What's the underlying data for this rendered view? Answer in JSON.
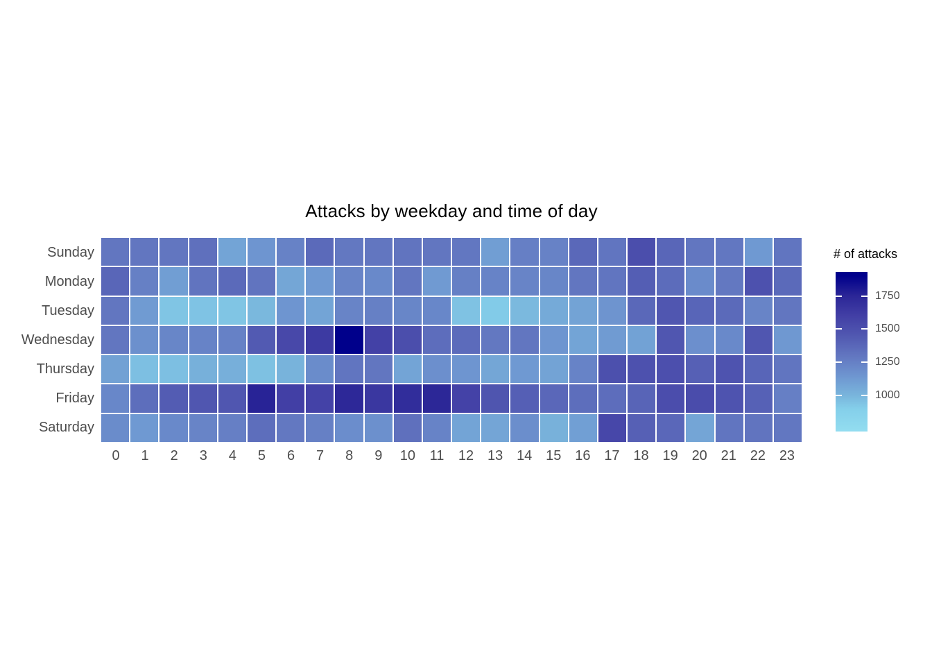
{
  "chart_data": {
    "type": "heatmap",
    "title": "Attacks by weekday and time of day",
    "xlabel": "",
    "ylabel": "",
    "x_categories": [
      "0",
      "1",
      "2",
      "3",
      "4",
      "5",
      "6",
      "7",
      "8",
      "9",
      "10",
      "11",
      "12",
      "13",
      "14",
      "15",
      "16",
      "17",
      "18",
      "19",
      "20",
      "21",
      "22",
      "23"
    ],
    "y_categories": [
      "Sunday",
      "Monday",
      "Tuesday",
      "Wednesday",
      "Thursday",
      "Friday",
      "Saturday"
    ],
    "series": [
      {
        "name": "Sunday",
        "values": [
          1300,
          1300,
          1300,
          1330,
          1080,
          1150,
          1240,
          1360,
          1290,
          1300,
          1310,
          1300,
          1295,
          1110,
          1255,
          1240,
          1370,
          1305,
          1510,
          1380,
          1300,
          1295,
          1130,
          1305
        ]
      },
      {
        "name": "Monday",
        "values": [
          1380,
          1250,
          1110,
          1310,
          1360,
          1310,
          1070,
          1130,
          1230,
          1210,
          1300,
          1125,
          1250,
          1235,
          1230,
          1225,
          1300,
          1305,
          1420,
          1350,
          1200,
          1290,
          1490,
          1360
        ]
      },
      {
        "name": "Tuesday",
        "values": [
          1300,
          1120,
          940,
          945,
          940,
          990,
          1150,
          1080,
          1230,
          1250,
          1225,
          1220,
          950,
          915,
          985,
          1050,
          1085,
          1155,
          1370,
          1460,
          1385,
          1360,
          1230,
          1300
        ]
      },
      {
        "name": "Wednesday",
        "values": [
          1300,
          1175,
          1225,
          1235,
          1245,
          1440,
          1545,
          1630,
          1900,
          1590,
          1510,
          1345,
          1355,
          1290,
          1300,
          1150,
          1080,
          1120,
          1090,
          1460,
          1180,
          1210,
          1465,
          1135
        ]
      },
      {
        "name": "Thursday",
        "values": [
          1095,
          960,
          960,
          1025,
          1030,
          955,
          1010,
          1195,
          1305,
          1300,
          1080,
          1180,
          1150,
          1070,
          1130,
          1085,
          1235,
          1500,
          1490,
          1505,
          1410,
          1480,
          1385,
          1305
        ]
      },
      {
        "name": "Friday",
        "values": [
          1220,
          1340,
          1430,
          1460,
          1465,
          1760,
          1600,
          1580,
          1740,
          1650,
          1710,
          1745,
          1580,
          1470,
          1415,
          1375,
          1340,
          1345,
          1390,
          1515,
          1520,
          1480,
          1405,
          1255
        ]
      },
      {
        "name": "Saturday",
        "values": [
          1195,
          1130,
          1210,
          1230,
          1255,
          1340,
          1290,
          1250,
          1190,
          1175,
          1330,
          1235,
          1080,
          1075,
          1185,
          1020,
          1105,
          1555,
          1410,
          1375,
          1075,
          1305,
          1310,
          1295
        ]
      }
    ],
    "legend": {
      "title": "# of attacks",
      "ticks": [
        1750,
        1500,
        1250,
        1000
      ],
      "domain": [
        730,
        1930
      ],
      "position": "right"
    },
    "color_scale": {
      "low_label": "light sky blue",
      "high_label": "dark navy",
      "stops": [
        [
          730,
          "#93DDF0"
        ],
        [
          900,
          "#84CFEA"
        ],
        [
          1000,
          "#79B5DC"
        ],
        [
          1150,
          "#6E95D0"
        ],
        [
          1300,
          "#6276C0"
        ],
        [
          1450,
          "#5158B1"
        ],
        [
          1600,
          "#423FA5"
        ],
        [
          1750,
          "#2B2697"
        ],
        [
          1900,
          "#00008B"
        ],
        [
          1930,
          "#00008B"
        ]
      ]
    },
    "grid_line_color": "#FFFFFF",
    "axis_text_color": "#4d4d4d",
    "background_color": "#FFFFFF"
  }
}
